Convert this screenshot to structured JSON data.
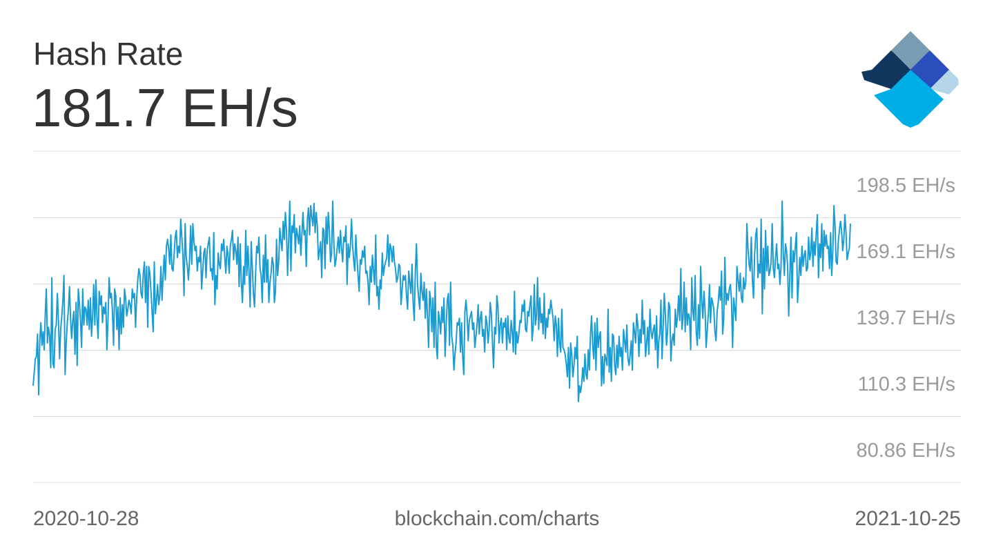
{
  "header": {
    "title": "Hash Rate",
    "value": "181.7 EH/s"
  },
  "footer": {
    "start_date": "2020-10-28",
    "source": "blockchain.com/charts",
    "end_date": "2021-10-25"
  },
  "logo": {
    "icon": "blockchain-logo-icon",
    "colors": [
      "#7a9db3",
      "#12375e",
      "#2a4fbd",
      "#00aee6",
      "#b5d6e8"
    ]
  },
  "colors": {
    "line": "#1a9cd2",
    "grid": "#dddddd",
    "tick_text": "#9a9a9a"
  },
  "chart_data": {
    "type": "line",
    "xlabel": "",
    "ylabel": "",
    "x_range": [
      "2020-10-28",
      "2021-10-25"
    ],
    "y_unit": "EH/s",
    "y_ticks": [
      {
        "value": 198.5,
        "label": "198.5 EH/s"
      },
      {
        "value": 169.1,
        "label": "169.1 EH/s"
      },
      {
        "value": 139.7,
        "label": "139.7 EH/s"
      },
      {
        "value": 110.3,
        "label": "110.3 EH/s"
      },
      {
        "value": 80.86,
        "label": "80.86 EH/s"
      }
    ],
    "ylim": [
      66.1,
      213.2
    ],
    "grid": true,
    "legend": "none",
    "series": [
      {
        "values": [
          109,
          115,
          121,
          122,
          132,
          105,
          129,
          137,
          127,
          133,
          125,
          141,
          152,
          128,
          135,
          131,
          117,
          157,
          119,
          117,
          134,
          136,
          150,
          138,
          121,
          134,
          140,
          147,
          158,
          114,
          128,
          137,
          143,
          153,
          138,
          130,
          138,
          142,
          123,
          146,
          118,
          152,
          146,
          138,
          126,
          152,
          136,
          144,
          143,
          136,
          147,
          134,
          148,
          131,
          140,
          154,
          136,
          156,
          139,
          130,
          151,
          145,
          149,
          137,
          144,
          141,
          146,
          125,
          139,
          157,
          148,
          150,
          142,
          127,
          152,
          149,
          134,
          144,
          125,
          148,
          132,
          145,
          135,
          152,
          148,
          140,
          143,
          147,
          145,
          141,
          152,
          148,
          150,
          135,
          148,
          156,
          161,
          158,
          150,
          148,
          159,
          164,
          146,
          162,
          135,
          162,
          159,
          151,
          142,
          133,
          164,
          141,
          147,
          154,
          145,
          149,
          162,
          147,
          158,
          167,
          156,
          171,
          174,
          170,
          163,
          176,
          161,
          160,
          167,
          175,
          178,
          166,
          171,
          168,
          183,
          175,
          167,
          149,
          181,
          166,
          162,
          156,
          165,
          180,
          163,
          181,
          173,
          169,
          171,
          160,
          166,
          164,
          171,
          152,
          160,
          168,
          170,
          157,
          169,
          172,
          175,
          160,
          161,
          156,
          177,
          145,
          158,
          152,
          168,
          163,
          161,
          172,
          169,
          174,
          166,
          159,
          171,
          167,
          159,
          171,
          174,
          178,
          165,
          172,
          169,
          163,
          175,
          153,
          172,
          155,
          146,
          162,
          154,
          178,
          158,
          171,
          159,
          144,
          173,
          162,
          150,
          144,
          159,
          171,
          168,
          175,
          161,
          158,
          146,
          167,
          155,
          176,
          155,
          165,
          146,
          155,
          159,
          166,
          163,
          146,
          151,
          174,
          158,
          164,
          179,
          173,
          169,
          182,
          174,
          186,
          178,
          158,
          174,
          191,
          160,
          180,
          177,
          185,
          168,
          179,
          176,
          172,
          180,
          167,
          176,
          186,
          176,
          178,
          162,
          183,
          188,
          176,
          189,
          184,
          180,
          190,
          177,
          186,
          180,
          165,
          169,
          173,
          157,
          179,
          178,
          161,
          184,
          172,
          186,
          178,
          164,
          168,
          191,
          173,
          162,
          165,
          170,
          175,
          168,
          178,
          170,
          164,
          175,
          173,
          180,
          154,
          172,
          166,
          171,
          183,
          172,
          165,
          160,
          176,
          166,
          158,
          151,
          165,
          163,
          169,
          166,
          171,
          159,
          160,
          155,
          145,
          162,
          155,
          167,
          160,
          154,
          176,
          149,
          153,
          143,
          156,
          152,
          168,
          158,
          162,
          164,
          166,
          176,
          162,
          172,
          170,
          164,
          171,
          164,
          161,
          155,
          157,
          163,
          162,
          145,
          152,
          158,
          156,
          158,
          149,
          143,
          160,
          155,
          150,
          163,
          146,
          138,
          160,
          172,
          154,
          148,
          143,
          159,
          151,
          147,
          155,
          139,
          152,
          140,
          126,
          151,
          147,
          133,
          148,
          126,
          155,
          127,
          121,
          142,
          138,
          132,
          144,
          137,
          148,
          122,
          136,
          147,
          150,
          127,
          155,
          131,
          127,
          116,
          123,
          128,
          137,
          136,
          139,
          124,
          137,
          122,
          114,
          142,
          147,
          140,
          129,
          138,
          140,
          142,
          134,
          137,
          126,
          131,
          136,
          145,
          132,
          139,
          142,
          131,
          134,
          124,
          140,
          137,
          128,
          134,
          146,
          141,
          128,
          117,
          135,
          132,
          149,
          144,
          128,
          136,
          139,
          128,
          137,
          135,
          139,
          125,
          140,
          130,
          128,
          138,
          133,
          124,
          151,
          123,
          133,
          128,
          132,
          138,
          137,
          145,
          142,
          147,
          134,
          133,
          142,
          140,
          145,
          149,
          129,
          135,
          154,
          136,
          140,
          157,
          134,
          148,
          137,
          141,
          132,
          150,
          130,
          139,
          135,
          143,
          141,
          147,
          143,
          139,
          129,
          140,
          136,
          122,
          139,
          128,
          124,
          143,
          126,
          125,
          123,
          119,
          113,
          126,
          108,
          128,
          123,
          113,
          118,
          126,
          121,
          131,
          102,
          109,
          106,
          110,
          117,
          111,
          123,
          114,
          112,
          125,
          116,
          132,
          140,
          127,
          121,
          137,
          116,
          139,
          126,
          131,
          133,
          109,
          122,
          110,
          123,
          121,
          118,
          143,
          115,
          126,
          111,
          132,
          131,
          118,
          114,
          127,
          117,
          131,
          122,
          126,
          116,
          134,
          129,
          124,
          136,
          121,
          118,
          123,
          129,
          116,
          137,
          133,
          128,
          141,
          136,
          122,
          134,
          128,
          147,
          132,
          138,
          122,
          128,
          135,
          123,
          143,
          133,
          130,
          134,
          136,
          125,
          140,
          117,
          129,
          132,
          147,
          121,
          135,
          150,
          141,
          127,
          133,
          146,
          144,
          120,
          129,
          132,
          127,
          143,
          135,
          140,
          149,
          138,
          161,
          134,
          139,
          155,
          133,
          148,
          136,
          141,
          139,
          125,
          157,
          142,
          138,
          158,
          133,
          127,
          145,
          130,
          162,
          147,
          139,
          151,
          143,
          126,
          134,
          141,
          154,
          137,
          148,
          146,
          143,
          133,
          129,
          142,
          146,
          153,
          147,
          160,
          132,
          139,
          166,
          145,
          150,
          147,
          152,
          154,
          147,
          126,
          148,
          143,
          138,
          162,
          156,
          151,
          159,
          148,
          146,
          157,
          152,
          155,
          181,
          170,
          163,
          160,
          175,
          156,
          148,
          167,
          176,
          179,
          157,
          163,
          159,
          183,
          141,
          170,
          152,
          178,
          160,
          171,
          158,
          160,
          164,
          181,
          161,
          157,
          166,
          172,
          161,
          163,
          154,
          162,
          191,
          168,
          158,
          172,
          169,
          162,
          140,
          158,
          175,
          148,
          169,
          164,
          171,
          177,
          146,
          155,
          166,
          158,
          171,
          162,
          167,
          169,
          160,
          161,
          175,
          165,
          168,
          179,
          162,
          173,
          167,
          177,
          185,
          157,
          172,
          166,
          181,
          160,
          178,
          171,
          176,
          170,
          171,
          161,
          177,
          158,
          169,
          189,
          180,
          164,
          163,
          173,
          178,
          182,
          178,
          169,
          174,
          185,
          177,
          165,
          168,
          170,
          181
        ]
      }
    ]
  }
}
